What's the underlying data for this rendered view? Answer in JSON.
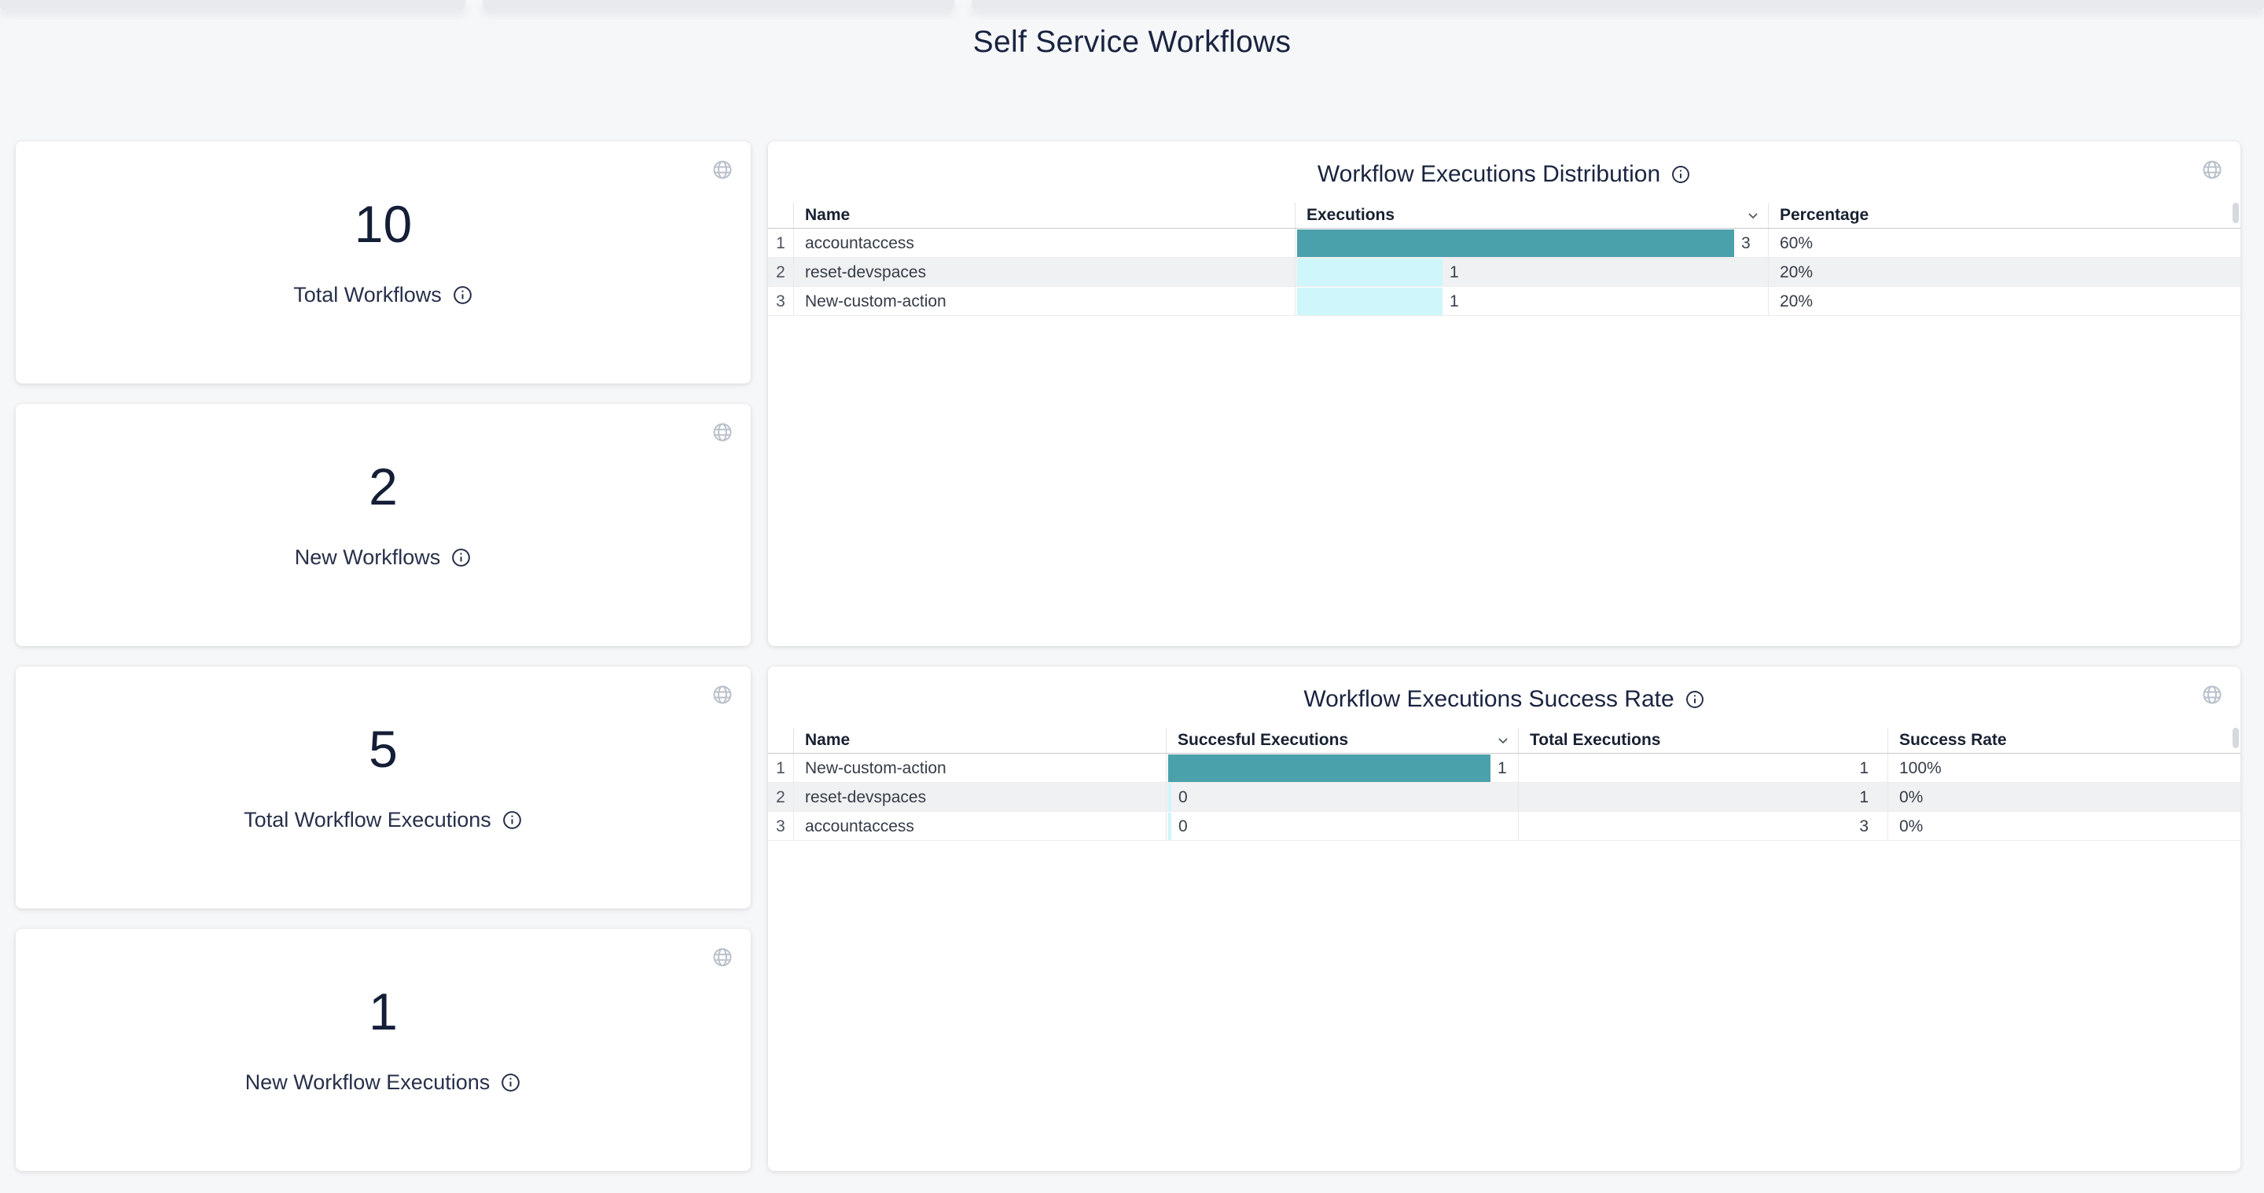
{
  "page": {
    "title": "Self Service Workflows"
  },
  "colors": {
    "bar_primary": "#4BA1AB",
    "bar_secondary": "#CEF6FB",
    "stripe": "#F0F1F2",
    "accent_text": "#1A2440"
  },
  "stats": [
    {
      "value": "10",
      "label": "Total Workflows"
    },
    {
      "value": "2",
      "label": "New Workflows"
    },
    {
      "value": "5",
      "label": "Total Workflow Executions"
    },
    {
      "value": "1",
      "label": "New Workflow Executions"
    }
  ],
  "dist": {
    "title": "Workflow Executions Distribution",
    "columns": [
      "Name",
      "Executions",
      "Percentage"
    ],
    "sorted_column": "Executions",
    "max_executions": 3,
    "rows": [
      {
        "num": "1",
        "name": "accountaccess",
        "executions": 3,
        "percentage": "60%"
      },
      {
        "num": "2",
        "name": "reset-devspaces",
        "executions": 1,
        "percentage": "20%"
      },
      {
        "num": "3",
        "name": "New-custom-action",
        "executions": 1,
        "percentage": "20%"
      }
    ]
  },
  "succ": {
    "title": "Workflow Executions Success Rate",
    "columns": [
      "Name",
      "Succesful Executions",
      "Total Executions",
      "Success Rate"
    ],
    "sorted_column": "Succesful Executions",
    "max_successful": 1,
    "rows": [
      {
        "num": "1",
        "name": "New-custom-action",
        "successful": 1,
        "total": "1",
        "rate": "100%"
      },
      {
        "num": "2",
        "name": "reset-devspaces",
        "successful": 0,
        "total": "1",
        "rate": "0%"
      },
      {
        "num": "3",
        "name": "accountaccess",
        "successful": 0,
        "total": "3",
        "rate": "0%"
      }
    ]
  }
}
